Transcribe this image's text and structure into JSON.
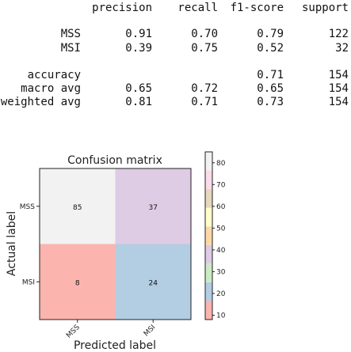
{
  "report": {
    "header": [
      "precision",
      "recall",
      "f1-score",
      "support"
    ],
    "rows": [
      {
        "label": "MSS",
        "precision": "0.91",
        "recall": "0.70",
        "f1": "0.79",
        "support": "122"
      },
      {
        "label": "MSI",
        "precision": "0.39",
        "recall": "0.75",
        "f1": "0.52",
        "support": "32"
      },
      {
        "label": "accuracy",
        "precision": "",
        "recall": "",
        "f1": "0.71",
        "support": "154"
      },
      {
        "label": "macro avg",
        "precision": "0.65",
        "recall": "0.72",
        "f1": "0.65",
        "support": "154"
      },
      {
        "label": "weighted avg",
        "precision": "0.81",
        "recall": "0.71",
        "f1": "0.73",
        "support": "154"
      }
    ]
  },
  "chart_data": {
    "type": "heatmap",
    "title": "Confusion matrix",
    "xlabel": "Predicted label",
    "ylabel": "Actual label",
    "x_categories": [
      "MSS",
      "MSI"
    ],
    "y_categories": [
      "MSS",
      "MSI"
    ],
    "values": [
      [
        85,
        37
      ],
      [
        8,
        24
      ]
    ],
    "colormap": "Pastel1",
    "colorbar": {
      "ticks": [
        10,
        20,
        30,
        40,
        50,
        60,
        70,
        80
      ],
      "range": [
        8,
        85
      ],
      "colors": [
        "#fbb4ae",
        "#b3cde3",
        "#ccebc5",
        "#decbe4",
        "#fed9a6",
        "#ffffcc",
        "#e5d8bd",
        "#fddaec",
        "#f2f2f2"
      ]
    }
  }
}
